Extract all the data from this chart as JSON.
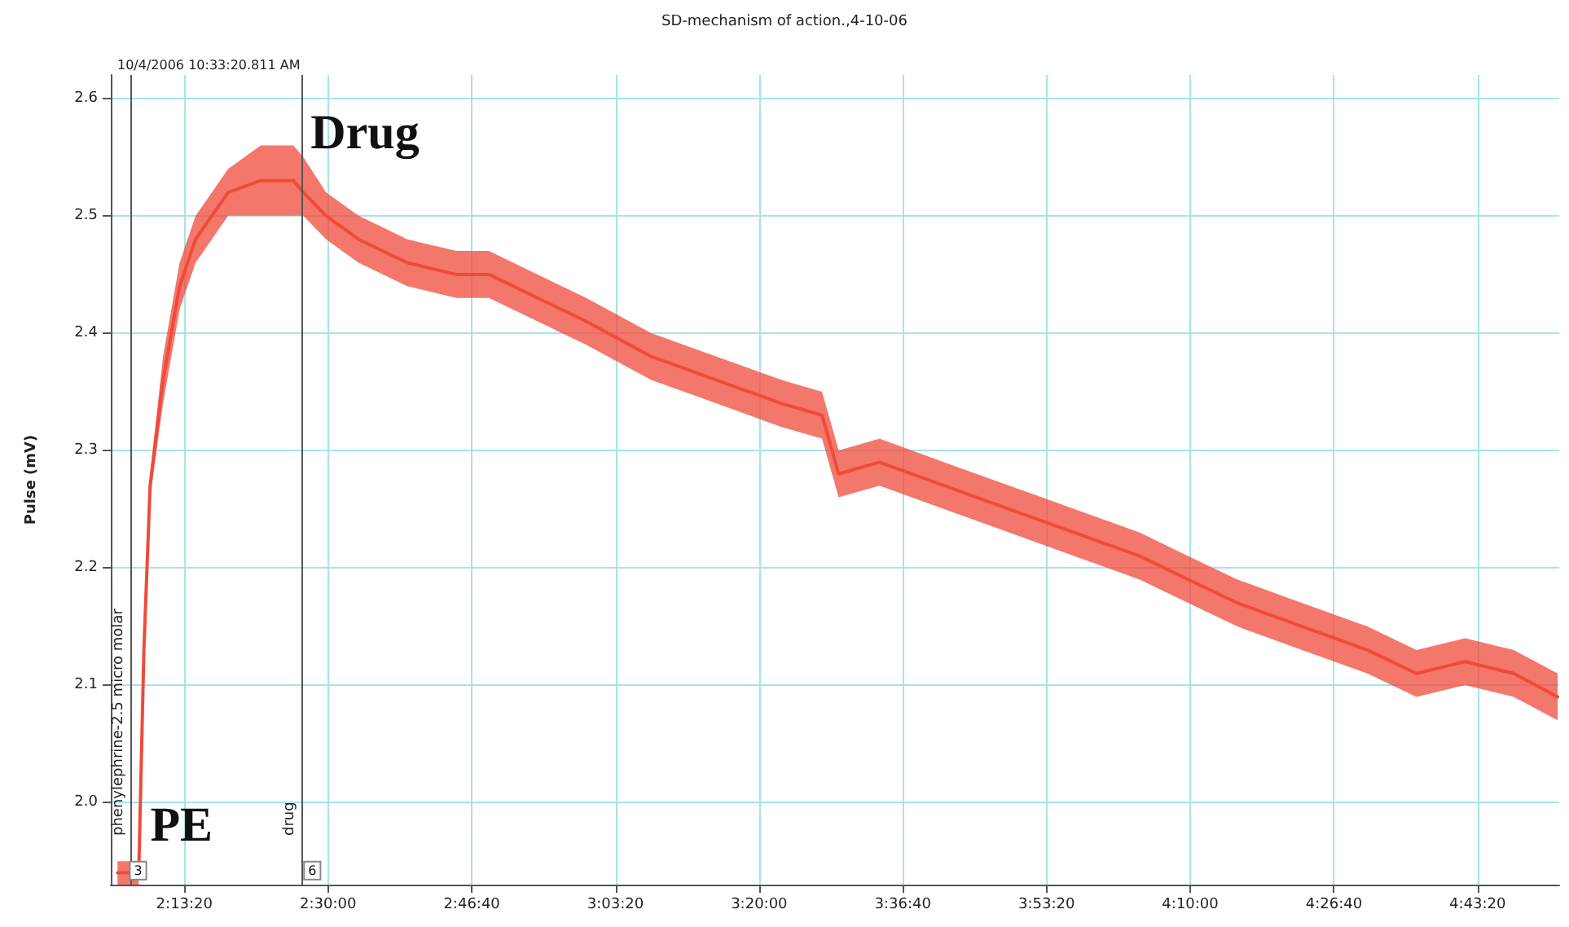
{
  "chart_data": {
    "type": "line",
    "title": "SD-mechanism of action.,4-10-06",
    "ylabel": "Pulse (mV)",
    "annotations": [
      "10/4/2006 10:33:20.811 AM",
      {
        "text": "PE",
        "x": 2.15,
        "y": 1.96
      },
      {
        "text": "Drug",
        "x": 2.46,
        "y": 2.55
      },
      {
        "text": "3",
        "x": 2.1153,
        "y": 1.935
      },
      {
        "text": "6",
        "x": 2.452,
        "y": 1.935
      }
    ],
    "x": [
      2.093,
      2.134,
      2.144,
      2.156,
      2.181,
      2.213,
      2.244,
      2.307,
      2.37,
      2.433,
      2.452,
      2.496,
      2.559,
      2.653,
      2.748,
      2.811,
      2.905,
      2.999,
      3.125,
      3.251,
      3.377,
      3.455,
      3.487,
      3.566,
      3.691,
      3.817,
      3.943,
      4.069,
      4.163,
      4.258,
      4.383,
      4.509,
      4.604,
      4.698,
      4.792,
      4.877
    ],
    "series": [
      {
        "color": "#f04a3a",
        "values": [
          1.94,
          1.94,
          2.13,
          2.27,
          2.36,
          2.44,
          2.48,
          2.52,
          2.53,
          2.53,
          2.52,
          2.5,
          2.48,
          2.46,
          2.45,
          2.45,
          2.43,
          2.41,
          2.38,
          2.36,
          2.34,
          2.33,
          2.28,
          2.29,
          2.27,
          2.25,
          2.23,
          2.21,
          2.19,
          2.17,
          2.15,
          2.13,
          2.11,
          2.12,
          2.11,
          2.09
        ],
        "lower": [
          1.93,
          1.93,
          2.12,
          2.26,
          2.34,
          2.42,
          2.46,
          2.5,
          2.5,
          2.5,
          2.5,
          2.48,
          2.46,
          2.44,
          2.43,
          2.43,
          2.41,
          2.39,
          2.36,
          2.34,
          2.32,
          2.31,
          2.26,
          2.27,
          2.25,
          2.23,
          2.21,
          2.19,
          2.17,
          2.15,
          2.13,
          2.11,
          2.09,
          2.1,
          2.09,
          2.07
        ],
        "upper": [
          1.95,
          1.95,
          2.14,
          2.28,
          2.38,
          2.46,
          2.5,
          2.54,
          2.56,
          2.56,
          2.55,
          2.52,
          2.5,
          2.48,
          2.47,
          2.47,
          2.45,
          2.43,
          2.4,
          2.38,
          2.36,
          2.35,
          2.3,
          2.31,
          2.29,
          2.27,
          2.25,
          2.23,
          2.21,
          2.19,
          2.17,
          2.15,
          2.13,
          2.14,
          2.13,
          2.11
        ]
      }
    ],
    "xlim": [
      2.08,
      4.88
    ],
    "xticks": [
      {
        "value": 2.2222,
        "label": "2:13:20"
      },
      {
        "value": 2.5,
        "label": "2:30:00"
      },
      {
        "value": 2.7778,
        "label": "2:46:40"
      },
      {
        "value": 3.0556,
        "label": "3:03:20"
      },
      {
        "value": 3.3333,
        "label": "3:20:00"
      },
      {
        "value": 3.6111,
        "label": "3:36:40"
      },
      {
        "value": 3.8889,
        "label": "3:53:20"
      },
      {
        "value": 4.1667,
        "label": "4:10:00"
      },
      {
        "value": 4.4444,
        "label": "4:26:40"
      },
      {
        "value": 4.7222,
        "label": "4:43:20"
      }
    ],
    "ylim": [
      1.93,
      2.62
    ],
    "yticks": [
      {
        "value": 2.0,
        "label": "2.0"
      },
      {
        "value": 2.1,
        "label": "2.1"
      },
      {
        "value": 2.2,
        "label": "2.2"
      },
      {
        "value": 2.3,
        "label": "2.3"
      },
      {
        "value": 2.4,
        "label": "2.4"
      },
      {
        "value": 2.5,
        "label": "2.5"
      },
      {
        "value": 2.6,
        "label": "2.6"
      }
    ],
    "ref_lines": [
      {
        "axis": "x",
        "value": 2.1153,
        "label": "phenylephrine-2.5 micro molar",
        "color": "#555555"
      },
      {
        "axis": "x",
        "value": 2.452,
        "label": "drug",
        "color": "#555555"
      }
    ],
    "grid": true,
    "marker": "none",
    "line_style": "solid"
  }
}
